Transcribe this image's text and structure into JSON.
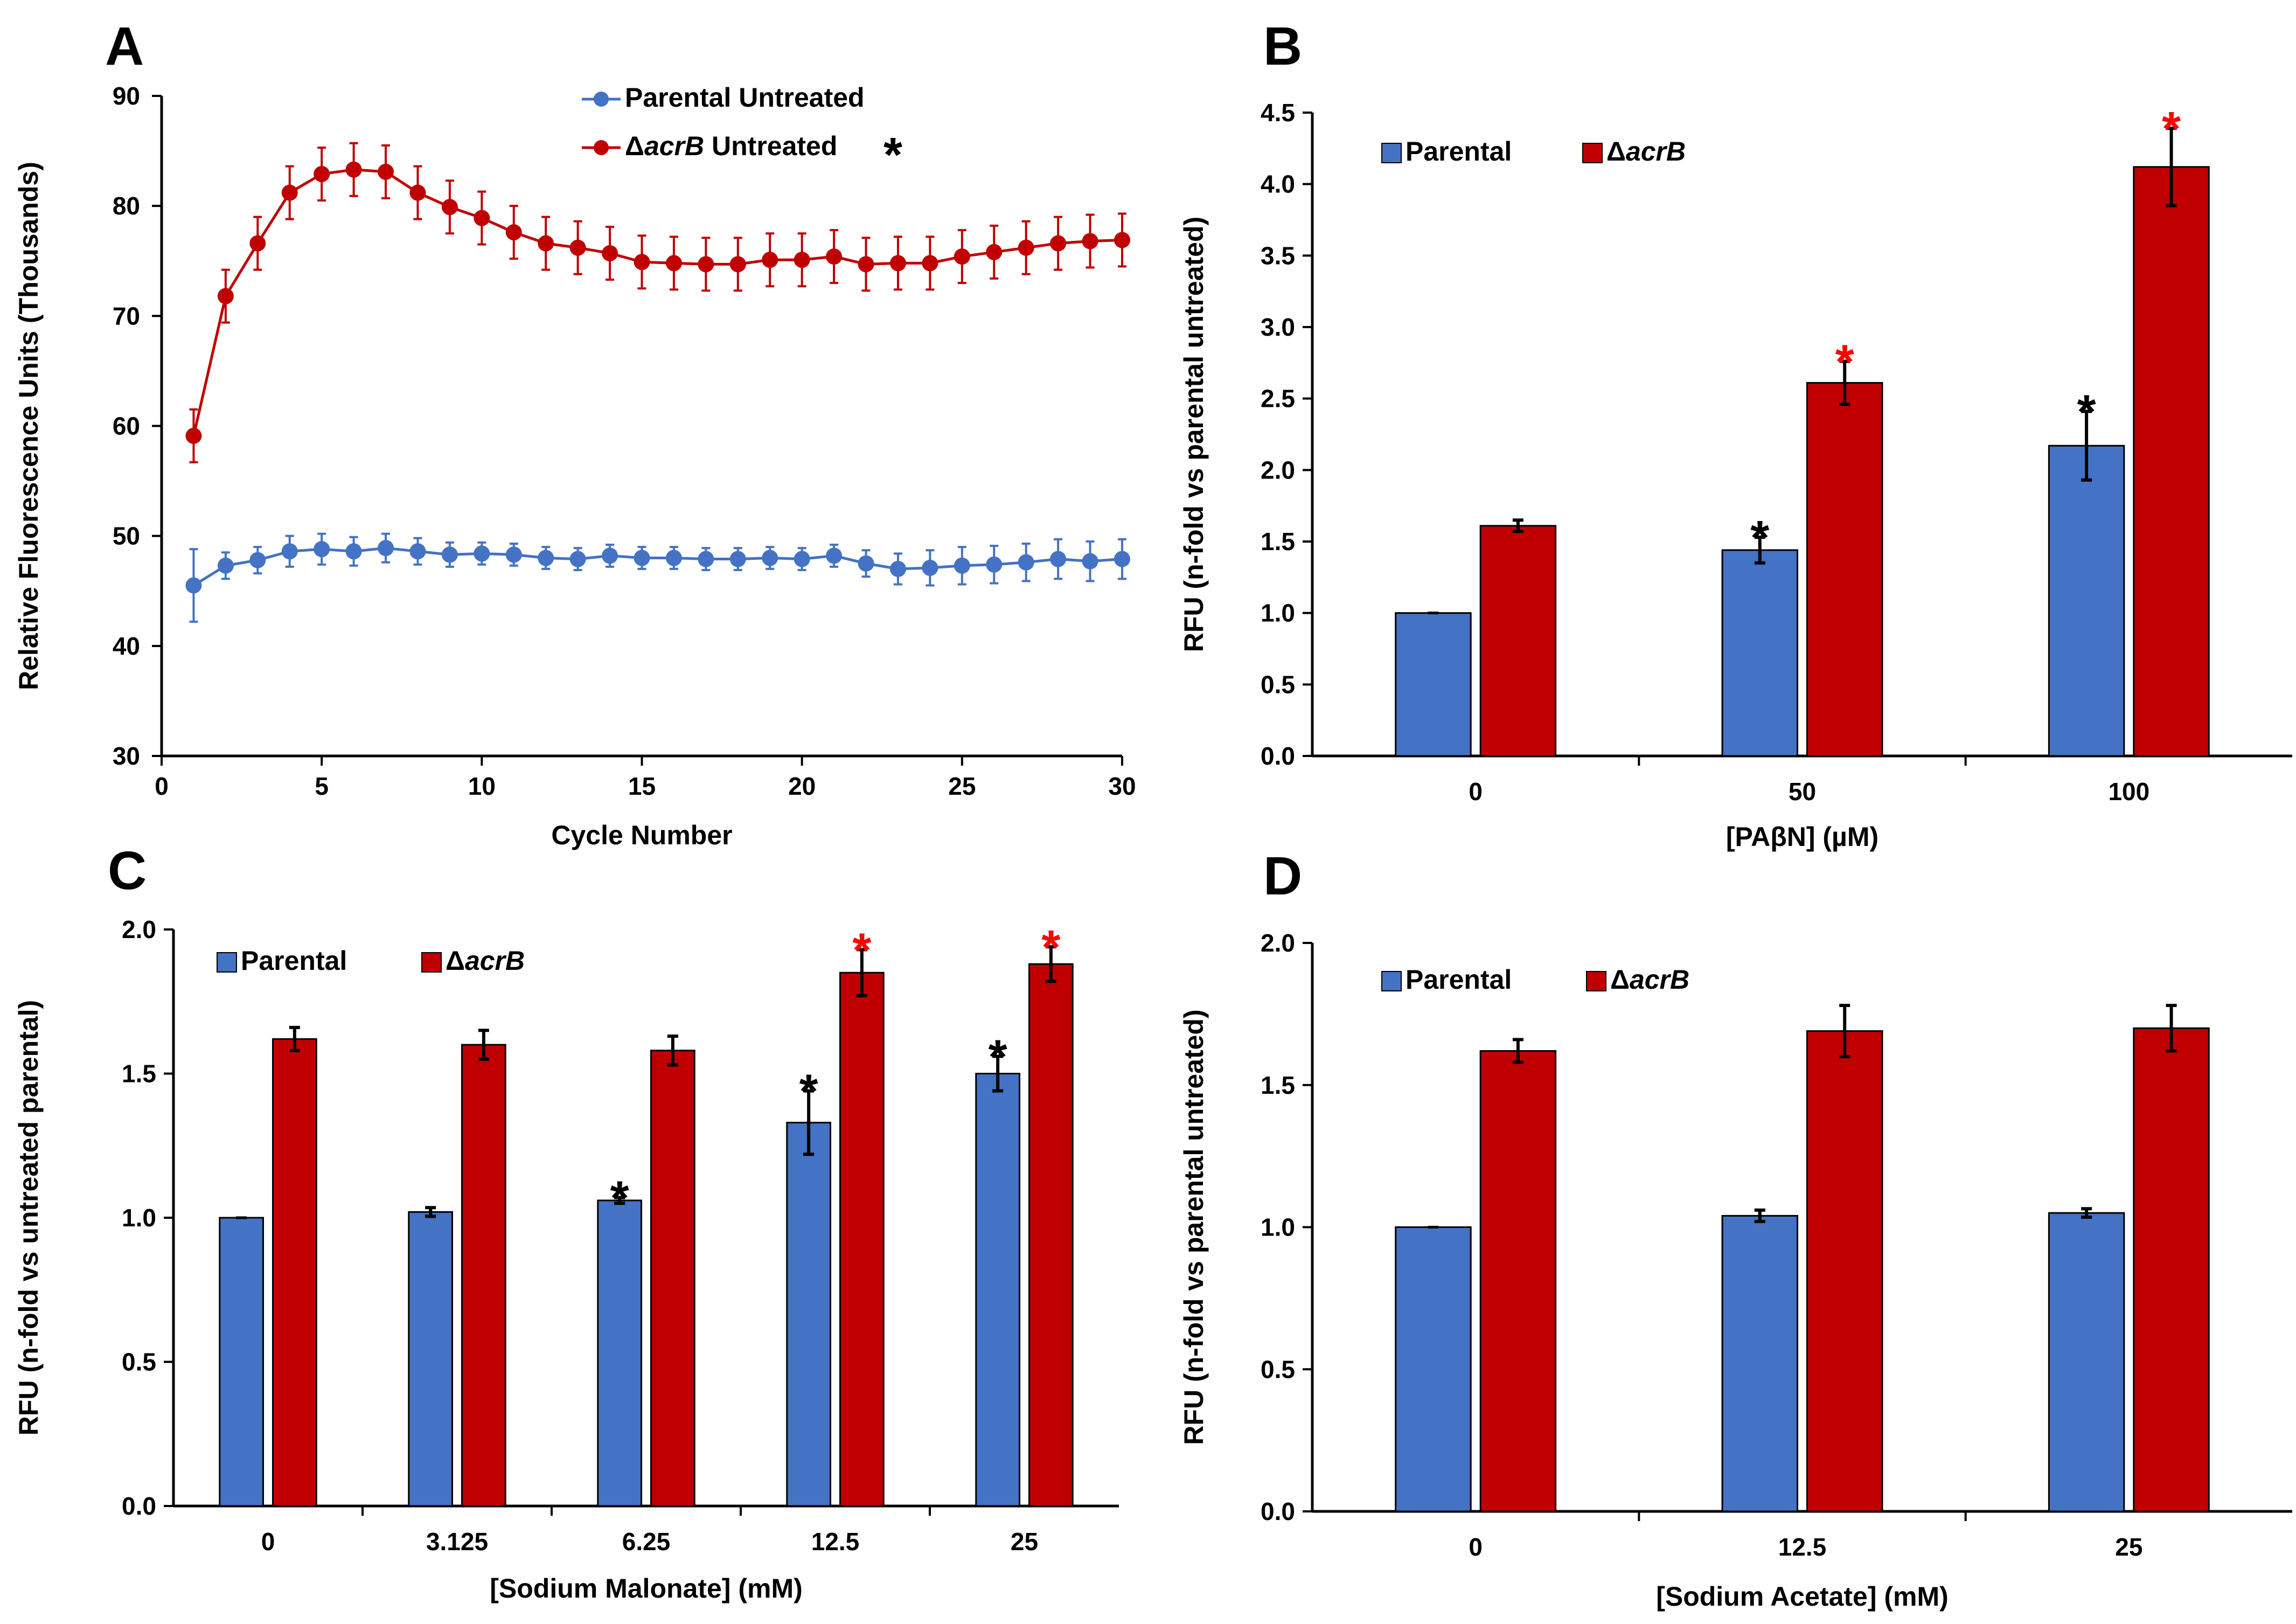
{
  "chart_data": [
    {
      "panel": "A",
      "type": "line",
      "title": "",
      "xlabel": "Cycle Number",
      "ylabel": "Relative Fluorescence Units (Thousands)",
      "xlim": [
        0,
        30
      ],
      "ylim": [
        30,
        90
      ],
      "xticks": [
        "0",
        "5",
        "10",
        "15",
        "20",
        "25",
        "30"
      ],
      "yticks": [
        "30",
        "40",
        "50",
        "60",
        "70",
        "80",
        "90"
      ],
      "grid": false,
      "legend_position": "top-center",
      "significance_marker": "*",
      "series": [
        {
          "name": "Parental Untreated",
          "legend_prefix": "",
          "legend_italic": "",
          "legend_suffix": "Parental Untreated",
          "color": "#4472C4",
          "x": [
            1,
            2,
            3,
            4,
            5,
            6,
            7,
            8,
            9,
            10,
            11,
            12,
            13,
            14,
            15,
            16,
            17,
            18,
            19,
            20,
            21,
            22,
            23,
            24,
            25,
            26,
            27,
            28,
            29,
            30
          ],
          "y": [
            45.5,
            47.3,
            47.8,
            48.6,
            48.8,
            48.6,
            48.9,
            48.6,
            48.3,
            48.4,
            48.3,
            48.0,
            47.9,
            48.2,
            48.0,
            48.0,
            47.9,
            47.9,
            48.0,
            47.9,
            48.2,
            47.5,
            47.0,
            47.1,
            47.3,
            47.4,
            47.6,
            47.9,
            47.7,
            47.9
          ],
          "err": [
            3.3,
            1.2,
            1.2,
            1.4,
            1.4,
            1.3,
            1.3,
            1.2,
            1.1,
            1.0,
            1.0,
            1.0,
            1.0,
            1.0,
            1.0,
            1.0,
            1.0,
            1.0,
            1.0,
            1.0,
            1.0,
            1.2,
            1.4,
            1.6,
            1.7,
            1.7,
            1.7,
            1.8,
            1.8,
            1.8
          ]
        },
        {
          "name": "ΔacrB Untreated",
          "legend_prefix": "Δ",
          "legend_italic": "acrB",
          "legend_suffix": " Untreated",
          "color": "#C00000",
          "x": [
            1,
            2,
            3,
            4,
            5,
            6,
            7,
            8,
            9,
            10,
            11,
            12,
            13,
            14,
            15,
            16,
            17,
            18,
            19,
            20,
            21,
            22,
            23,
            24,
            25,
            26,
            27,
            28,
            29,
            30
          ],
          "y": [
            59.1,
            71.8,
            76.6,
            81.2,
            82.9,
            83.3,
            83.1,
            81.2,
            79.9,
            78.9,
            77.6,
            76.6,
            76.2,
            75.7,
            74.9,
            74.8,
            74.7,
            74.7,
            75.1,
            75.1,
            75.4,
            74.7,
            74.8,
            74.8,
            75.4,
            75.8,
            76.2,
            76.6,
            76.8,
            76.9
          ]
        }
      ]
    },
    {
      "panel": "B",
      "type": "bar",
      "title": "",
      "xlabel": "[PAβN] (µM)",
      "ylabel": "RFU (n-fold vs parental untreated)",
      "categories": [
        "0",
        "50",
        "100"
      ],
      "ylim": [
        0,
        4.5
      ],
      "yticks": [
        "0.0",
        "0.5",
        "1.0",
        "1.5",
        "2.0",
        "2.5",
        "3.0",
        "3.5",
        "4.0",
        "4.5"
      ],
      "grid": false,
      "legend_position": "top-left",
      "legend_parental": "Parental",
      "legend_mutant_prefix": "Δ",
      "legend_mutant_italic": "acrB",
      "significance_marker": "*",
      "series": [
        {
          "name": "Parental",
          "color": "#4472C4",
          "values": [
            1.0,
            1.44,
            2.17
          ],
          "err": [
            0.0,
            0.09,
            0.24
          ],
          "stars": [
            false,
            true,
            true
          ],
          "star_color": "#000000"
        },
        {
          "name": "ΔacrB",
          "color": "#C00000",
          "values": [
            1.61,
            2.61,
            4.12
          ],
          "err": [
            0.04,
            0.15,
            0.27
          ],
          "stars": [
            false,
            true,
            true
          ],
          "star_color": "#FF0000"
        }
      ]
    },
    {
      "panel": "C",
      "type": "bar",
      "title": "",
      "xlabel": "[Sodium Malonate] (mM)",
      "ylabel": "RFU (n-fold vs untreated parental)",
      "categories": [
        "0",
        "3.125",
        "6.25",
        "12.5",
        "25"
      ],
      "ylim": [
        0,
        2.0
      ],
      "yticks": [
        "0.0",
        "0.5",
        "1.0",
        "1.5",
        "2.0"
      ],
      "grid": false,
      "legend_position": "top-left",
      "legend_parental": "Parental",
      "legend_mutant_prefix": "Δ",
      "legend_mutant_italic": "acrB",
      "significance_marker": "*",
      "series": [
        {
          "name": "Parental",
          "color": "#4472C4",
          "values": [
            1.0,
            1.02,
            1.06,
            1.33,
            1.5
          ],
          "err": [
            0.0,
            0.015,
            0.01,
            0.11,
            0.06
          ],
          "stars": [
            false,
            false,
            true,
            true,
            true
          ],
          "star_color": "#000000"
        },
        {
          "name": "ΔacrB",
          "color": "#C00000",
          "values": [
            1.62,
            1.6,
            1.58,
            1.85,
            1.88
          ],
          "err": [
            0.04,
            0.05,
            0.05,
            0.08,
            0.06
          ],
          "stars": [
            false,
            false,
            false,
            true,
            true
          ],
          "star_color": "#FF0000"
        }
      ]
    },
    {
      "panel": "D",
      "type": "bar",
      "title": "",
      "xlabel": "[Sodium Acetate] (mM)",
      "ylabel": "RFU (n-fold vs parental untreated)",
      "categories": [
        "0",
        "12.5",
        "25"
      ],
      "ylim": [
        0,
        2.0
      ],
      "yticks": [
        "0.0",
        "0.5",
        "1.0",
        "1.5",
        "2.0"
      ],
      "grid": false,
      "legend_position": "top-left",
      "legend_parental": "Parental",
      "legend_mutant_prefix": "Δ",
      "legend_mutant_italic": "acrB",
      "significance_marker": "*",
      "series": [
        {
          "name": "Parental",
          "color": "#4472C4",
          "values": [
            1.0,
            1.04,
            1.05
          ],
          "err": [
            0.0,
            0.02,
            0.015
          ],
          "stars": [
            false,
            false,
            false
          ],
          "star_color": "#000000"
        },
        {
          "name": "ΔacrB",
          "color": "#C00000",
          "values": [
            1.62,
            1.69,
            1.7
          ],
          "err": [
            0.04,
            0.09,
            0.08
          ],
          "stars": [
            false,
            false,
            false
          ],
          "star_color": "#FF0000"
        }
      ]
    }
  ]
}
